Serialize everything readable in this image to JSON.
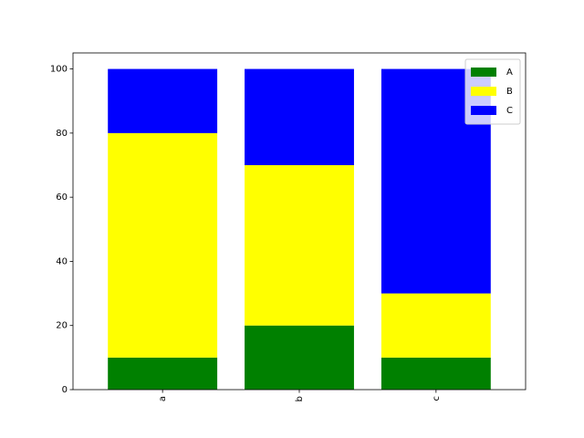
{
  "chart_data": {
    "type": "bar",
    "stacked": true,
    "categories": [
      "a",
      "b",
      "c"
    ],
    "series": [
      {
        "name": "A",
        "color": "green",
        "values": [
          10,
          20,
          10
        ]
      },
      {
        "name": "B",
        "color": "yellow",
        "values": [
          70,
          50,
          20
        ]
      },
      {
        "name": "C",
        "color": "blue",
        "values": [
          20,
          30,
          70
        ]
      }
    ],
    "ylim": [
      0,
      105
    ],
    "yticks": [
      0,
      20,
      40,
      60,
      80,
      100
    ],
    "legend": "upper right"
  }
}
